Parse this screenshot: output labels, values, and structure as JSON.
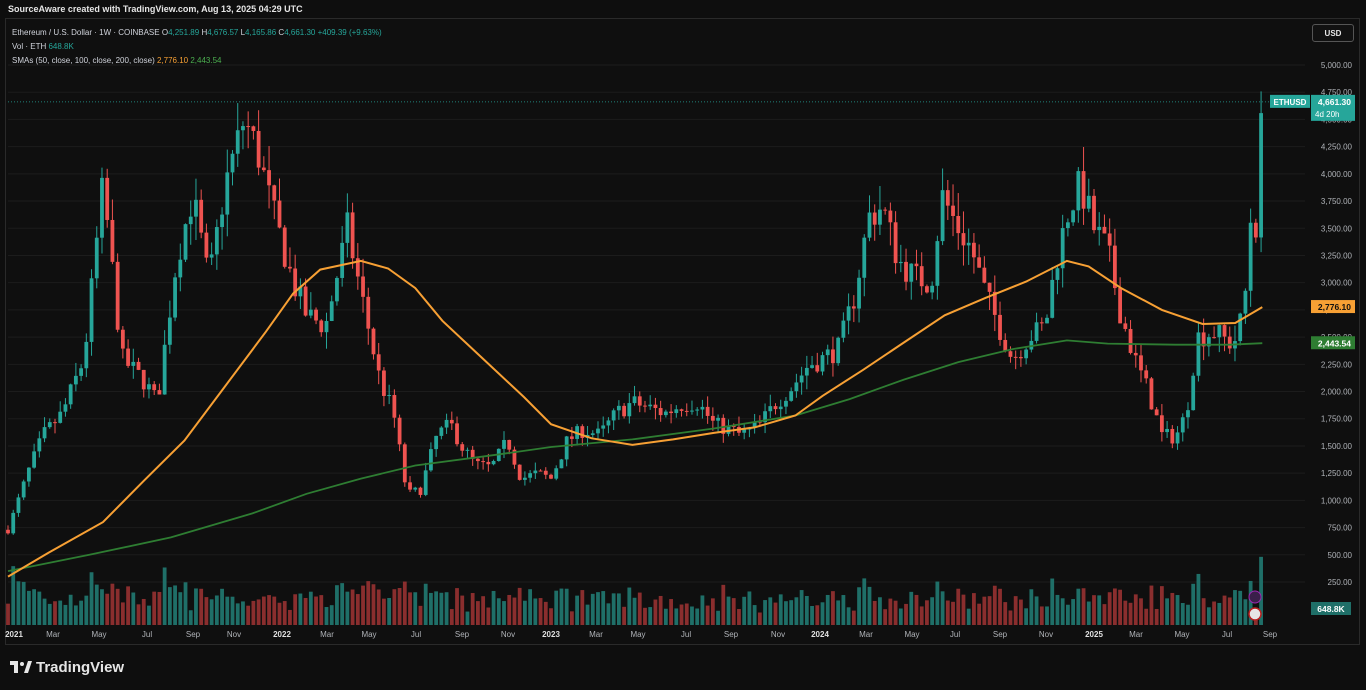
{
  "header": {
    "attribution": "SourceAware created with TradingView.com, Aug 13, 2025 04:29 UTC"
  },
  "legend": {
    "symbol": "Ethereum / U.S. Dollar · 1W · COINBASE",
    "o_label": "O",
    "o_value": "4,251.89",
    "h_label": "H",
    "h_value": "4,676.57",
    "l_label": "L",
    "l_value": "4,165.86",
    "c_label": "C",
    "c_value": "4,661.30",
    "change": "+409.39 (+9.63%)",
    "vol_label": "Vol · ETH",
    "vol_value": "648.8K",
    "sma_label": "SMAs (50, close, 100, close, 200, close)",
    "sma1_value": "2,776.10",
    "sma2_value": "2,443.54"
  },
  "currency_button": "USD",
  "brand": "TradingView",
  "chart_data": {
    "type": "candlestick",
    "x_tick_labels": [
      "2021",
      "Mar",
      "May",
      "Jul",
      "Sep",
      "Nov",
      "2022",
      "Mar",
      "May",
      "Jul",
      "Sep",
      "Nov",
      "2023",
      "Mar",
      "May",
      "Jul",
      "Sep",
      "Nov",
      "2024",
      "Mar",
      "May",
      "Jul",
      "Sep",
      "Nov",
      "2025",
      "Mar",
      "May",
      "Jul",
      "Sep"
    ],
    "y_tick_labels": [
      "5,000.00",
      "4,750.00",
      "4,500.00",
      "4,250.00",
      "4,000.00",
      "3,750.00",
      "3,500.00",
      "3,250.00",
      "3,000.00",
      "2,750.00",
      "2,500.00",
      "2,250.00",
      "2,000.00",
      "1,750.00",
      "1,500.00",
      "1,250.00",
      "1,000.00",
      "750.00",
      "500.00",
      "250.00"
    ],
    "y_tick_values": [
      5000,
      4750,
      4500,
      4250,
      4000,
      3750,
      3500,
      3250,
      3000,
      2750,
      2500,
      2250,
      2000,
      1750,
      1500,
      1250,
      1000,
      750,
      500,
      250
    ],
    "ylim": [
      0,
      5000
    ],
    "price_label": {
      "symbol": "ETHUSD",
      "value": "4,661.30",
      "countdown": "4d 20h"
    },
    "sma1_label": "2,776.10",
    "sma2_label": "2,443.54",
    "volume_label": "648.8K",
    "colors": {
      "up": "#26a69a",
      "down": "#ef5350",
      "sma50": "#f7a034",
      "sma200": "#2e7d32",
      "vol_up": "#1f6f68",
      "vol_down": "#8a2e2e"
    },
    "sma50_points": [
      [
        2021.0,
        300
      ],
      [
        2021.15,
        520
      ],
      [
        2021.35,
        800
      ],
      [
        2021.5,
        1180
      ],
      [
        2021.65,
        1550
      ],
      [
        2021.8,
        2050
      ],
      [
        2021.95,
        2550
      ],
      [
        2022.05,
        2900
      ],
      [
        2022.15,
        3120
      ],
      [
        2022.3,
        3200
      ],
      [
        2022.4,
        3130
      ],
      [
        2022.5,
        2950
      ],
      [
        2022.6,
        2650
      ],
      [
        2022.75,
        2300
      ],
      [
        2022.9,
        1950
      ],
      [
        2023.0,
        1700
      ],
      [
        2023.15,
        1570
      ],
      [
        2023.3,
        1510
      ],
      [
        2023.45,
        1560
      ],
      [
        2023.6,
        1620
      ],
      [
        2023.75,
        1670
      ],
      [
        2023.9,
        1780
      ],
      [
        2024.0,
        1960
      ],
      [
        2024.15,
        2200
      ],
      [
        2024.3,
        2450
      ],
      [
        2024.45,
        2700
      ],
      [
        2024.6,
        2860
      ],
      [
        2024.75,
        3010
      ],
      [
        2024.9,
        3200
      ],
      [
        2024.98,
        3150
      ],
      [
        2025.1,
        2950
      ],
      [
        2025.25,
        2750
      ],
      [
        2025.4,
        2620
      ],
      [
        2025.52,
        2630
      ],
      [
        2025.62,
        2776
      ]
    ],
    "sma200_points": [
      [
        2021.0,
        350
      ],
      [
        2021.3,
        500
      ],
      [
        2021.6,
        660
      ],
      [
        2021.9,
        880
      ],
      [
        2022.1,
        1060
      ],
      [
        2022.3,
        1200
      ],
      [
        2022.5,
        1320
      ],
      [
        2022.8,
        1420
      ],
      [
        2023.0,
        1490
      ],
      [
        2023.3,
        1560
      ],
      [
        2023.6,
        1660
      ],
      [
        2023.9,
        1780
      ],
      [
        2024.1,
        1930
      ],
      [
        2024.3,
        2110
      ],
      [
        2024.5,
        2270
      ],
      [
        2024.7,
        2390
      ],
      [
        2024.9,
        2470
      ],
      [
        2025.05,
        2440
      ],
      [
        2025.3,
        2430
      ],
      [
        2025.5,
        2430
      ],
      [
        2025.62,
        2444
      ]
    ]
  }
}
